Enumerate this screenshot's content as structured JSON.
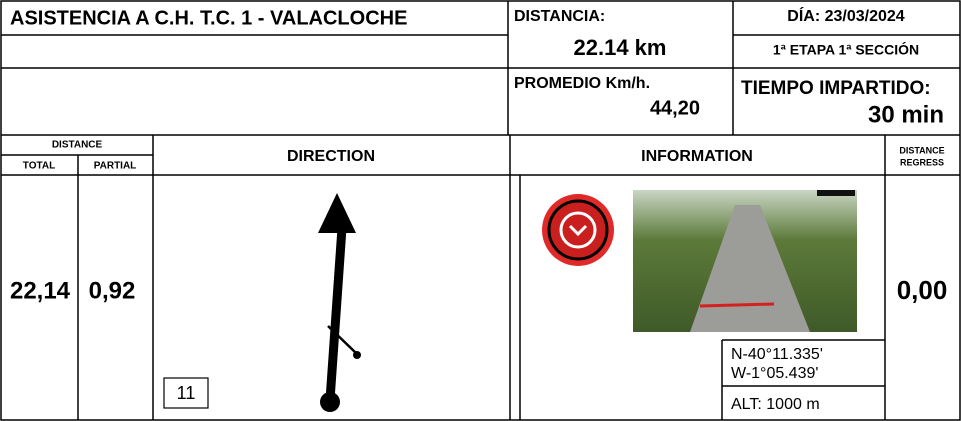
{
  "header": {
    "title": "ASISTENCIA A C.H. T.C. 1 - VALACLOCHE",
    "distance_label": "DISTANCIA:",
    "distance_value": "22.14 km",
    "date": "DÍA: 23/03/2024",
    "stage": "1ª ETAPA 1ª SECCIÓN",
    "average_label": "PROMEDIO Km/h.",
    "average_value": "44,20",
    "time_label": "TIEMPO IMPARTIDO:",
    "time_value": "30 min"
  },
  "columns": {
    "distance": "DISTANCE",
    "total": "TOTAL",
    "partial": "PARTIAL",
    "direction": "DIRECTION",
    "information": "INFORMATION",
    "regress": [
      "DISTANCE",
      "REGRESS"
    ]
  },
  "row": {
    "total": "22,14",
    "partial": "0,92",
    "number": "11",
    "latitude": "N-40°11.335'",
    "longitude": "W-1°05.439'",
    "altitude": "ALT: 1000 m",
    "regress": "0,00"
  }
}
